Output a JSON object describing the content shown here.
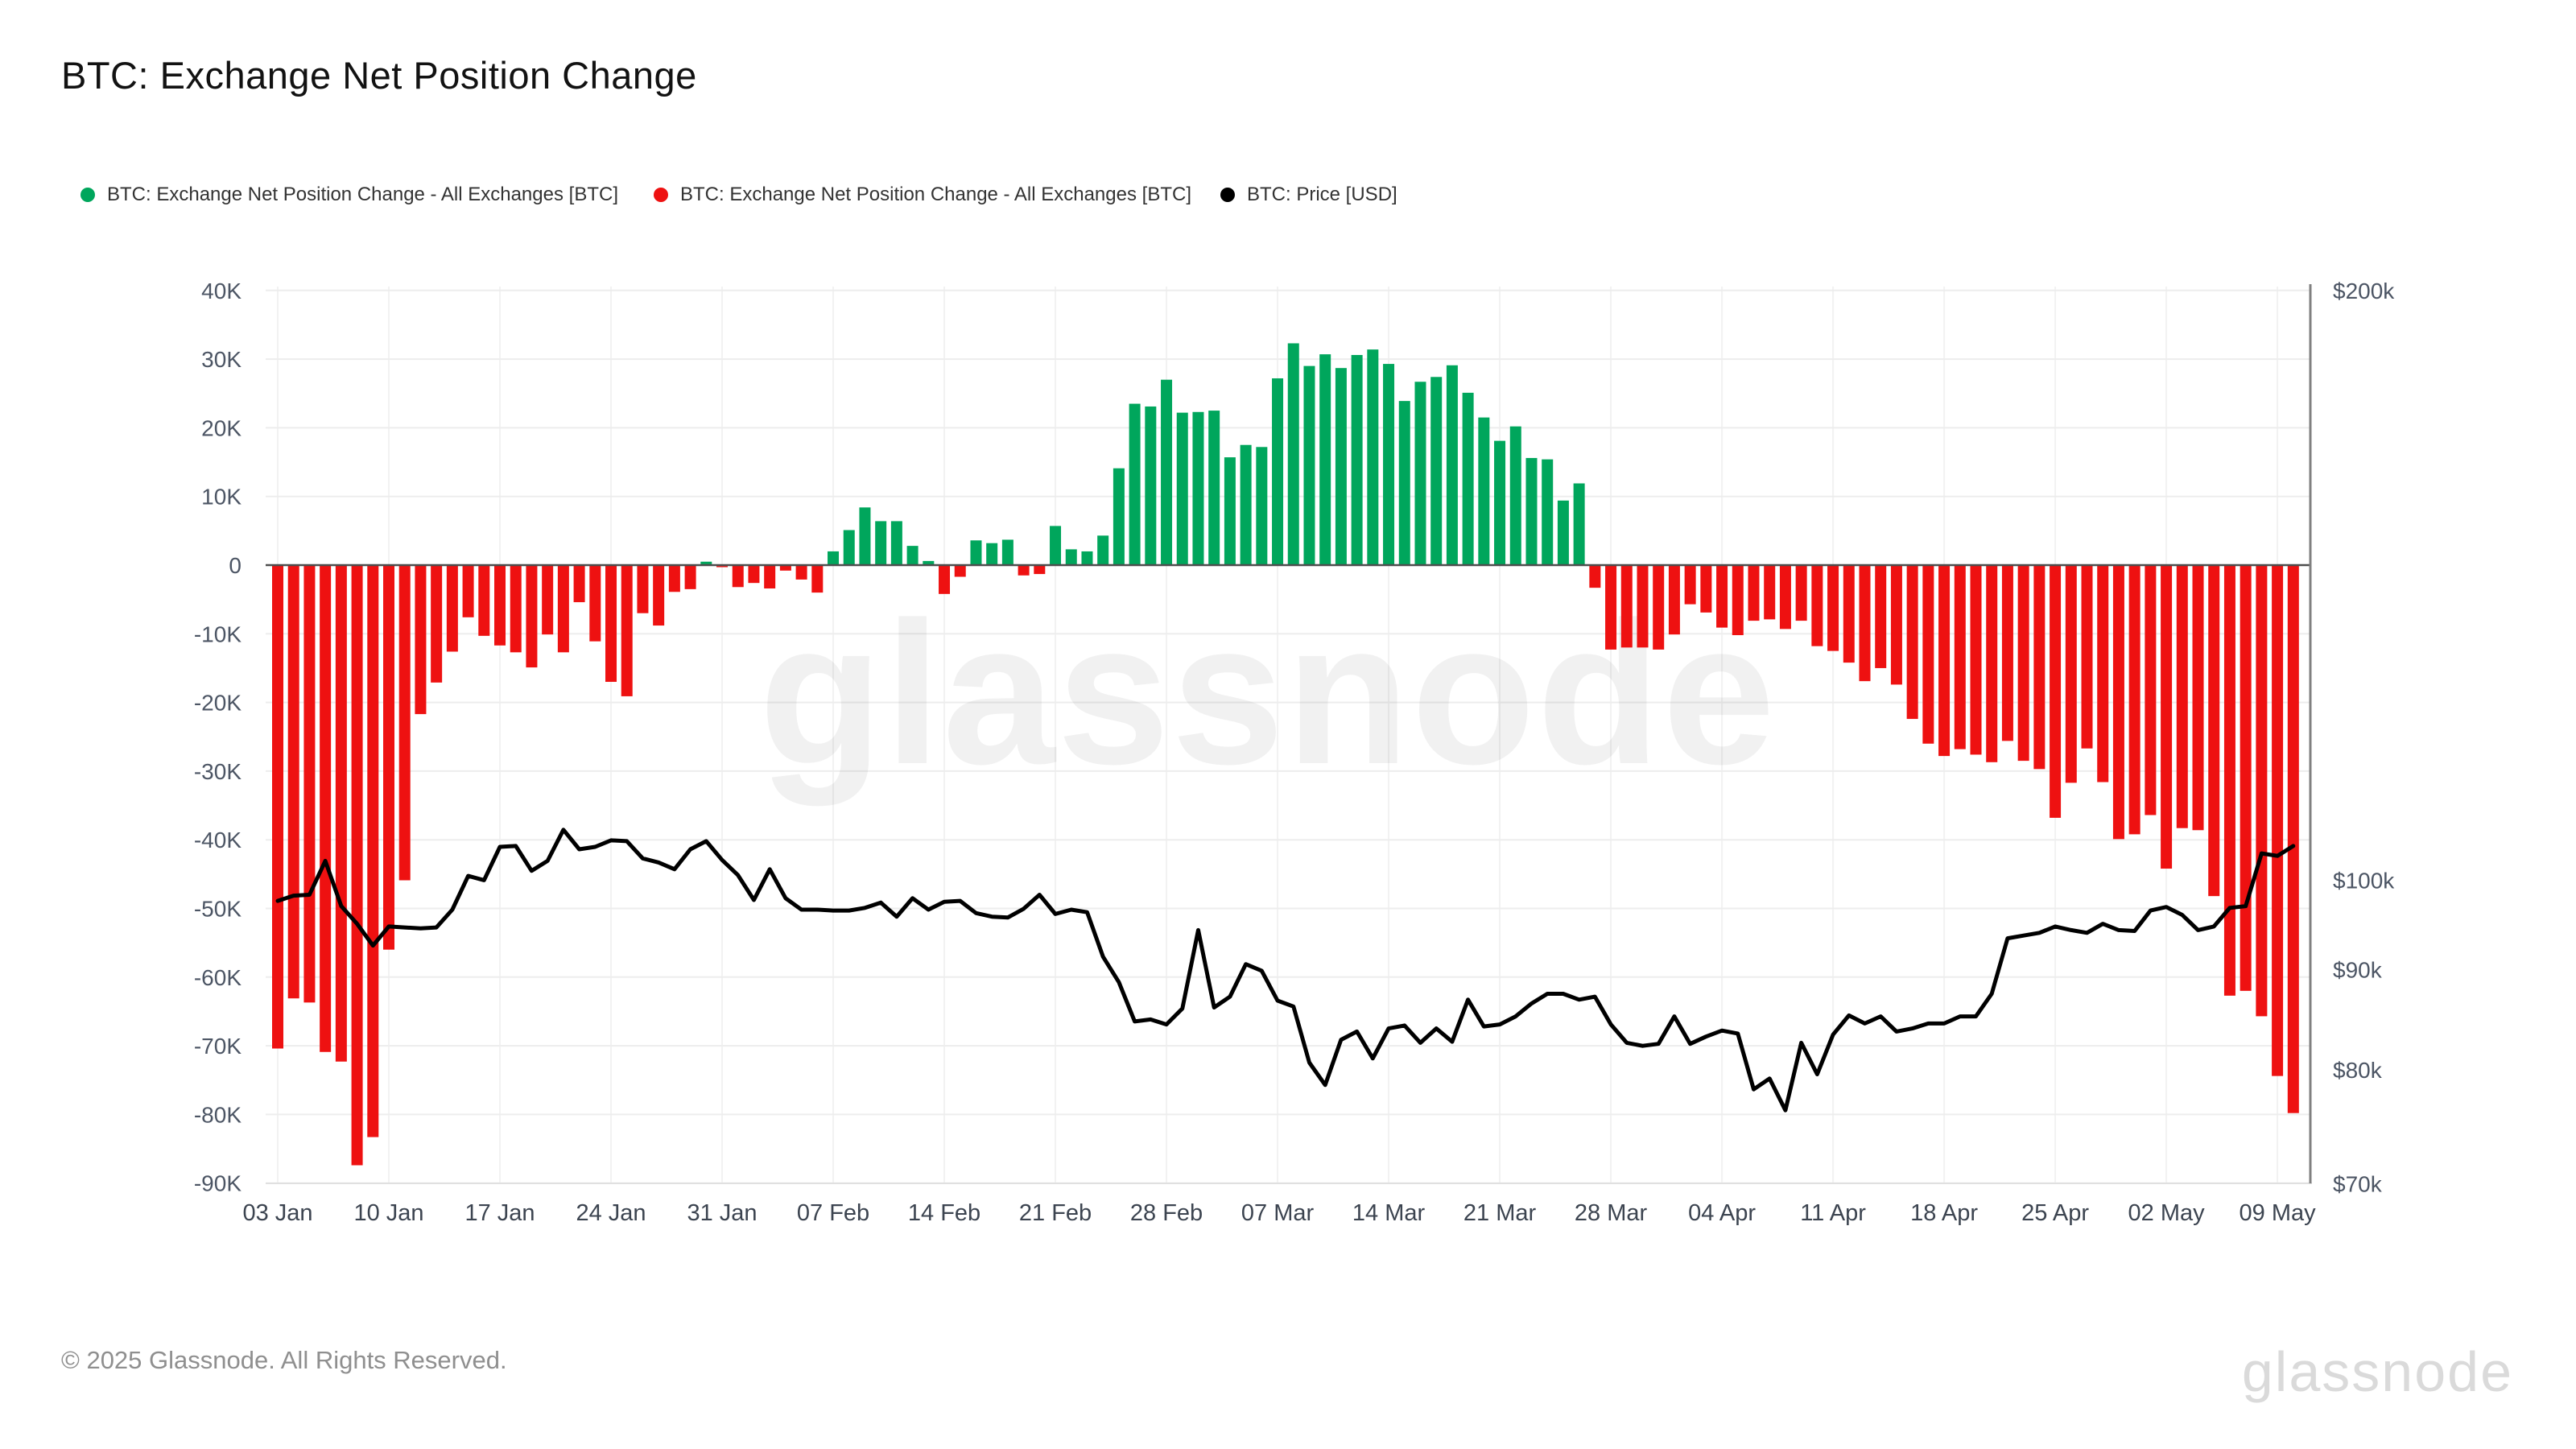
{
  "title": "BTC: Exchange Net Position Change",
  "watermark": "glassnode",
  "legend": {
    "items": [
      {
        "label": "BTC: Exchange Net Position Change - All Exchanges [BTC]",
        "color": "#00a65c"
      },
      {
        "label": "BTC: Exchange Net Position Change - All Exchanges [BTC]",
        "color": "#ee1111"
      },
      {
        "label": "BTC: Price [USD]",
        "color": "#000000"
      }
    ]
  },
  "footer": {
    "copyright": "© 2025 Glassnode. All Rights Reserved.",
    "brand": "glassnode"
  },
  "chart_data": {
    "type": "mixed",
    "title": "BTC: Exchange Net Position Change",
    "grid": true,
    "legend_position": "top-left",
    "left_axis": {
      "unit": "BTC",
      "scale": "linear",
      "range_k": [
        -90,
        40
      ],
      "ticks": [
        "40K",
        "30K",
        "20K",
        "10K",
        "0",
        "-10K",
        "-20K",
        "-30K",
        "-40K",
        "-50K",
        "-60K",
        "-70K",
        "-80K",
        "-90K"
      ],
      "tick_values_k": [
        40,
        30,
        20,
        10,
        0,
        -10,
        -20,
        -30,
        -40,
        -50,
        -60,
        -70,
        -80,
        -90
      ]
    },
    "right_axis": {
      "unit": "USD",
      "scale": "log",
      "range_usd": [
        70000,
        200000
      ],
      "ticks": [
        "$200k",
        "$100k",
        "$90k",
        "$80k",
        "$70k"
      ],
      "tick_values_k": [
        200,
        100,
        90,
        80,
        70
      ]
    },
    "x_tick_labels": [
      "03 Jan",
      "10 Jan",
      "17 Jan",
      "24 Jan",
      "31 Jan",
      "07 Feb",
      "14 Feb",
      "21 Feb",
      "28 Feb",
      "07 Mar",
      "14 Mar",
      "21 Mar",
      "28 Mar",
      "04 Apr",
      "11 Apr",
      "18 Apr",
      "25 Apr",
      "02 May",
      "09 May"
    ],
    "categories": [
      "03 Jan",
      "04 Jan",
      "05 Jan",
      "06 Jan",
      "07 Jan",
      "08 Jan",
      "09 Jan",
      "10 Jan",
      "11 Jan",
      "12 Jan",
      "13 Jan",
      "14 Jan",
      "15 Jan",
      "16 Jan",
      "17 Jan",
      "18 Jan",
      "19 Jan",
      "20 Jan",
      "21 Jan",
      "22 Jan",
      "23 Jan",
      "24 Jan",
      "25 Jan",
      "26 Jan",
      "27 Jan",
      "28 Jan",
      "29 Jan",
      "30 Jan",
      "31 Jan",
      "01 Feb",
      "02 Feb",
      "03 Feb",
      "04 Feb",
      "05 Feb",
      "06 Feb",
      "07 Feb",
      "08 Feb",
      "09 Feb",
      "10 Feb",
      "11 Feb",
      "12 Feb",
      "13 Feb",
      "14 Feb",
      "15 Feb",
      "16 Feb",
      "17 Feb",
      "18 Feb",
      "19 Feb",
      "20 Feb",
      "21 Feb",
      "22 Feb",
      "23 Feb",
      "24 Feb",
      "25 Feb",
      "26 Feb",
      "27 Feb",
      "28 Feb",
      "01 Mar",
      "02 Mar",
      "03 Mar",
      "04 Mar",
      "05 Mar",
      "06 Mar",
      "07 Mar",
      "08 Mar",
      "09 Mar",
      "10 Mar",
      "11 Mar",
      "12 Mar",
      "13 Mar",
      "14 Mar",
      "15 Mar",
      "16 Mar",
      "17 Mar",
      "18 Mar",
      "19 Mar",
      "20 Mar",
      "21 Mar",
      "22 Mar",
      "23 Mar",
      "24 Mar",
      "25 Mar",
      "26 Mar",
      "27 Mar",
      "28 Mar",
      "29 Mar",
      "30 Mar",
      "31 Mar",
      "01 Apr",
      "02 Apr",
      "03 Apr",
      "04 Apr",
      "05 Apr",
      "06 Apr",
      "07 Apr",
      "08 Apr",
      "09 Apr",
      "10 Apr",
      "11 Apr",
      "12 Apr",
      "13 Apr",
      "14 Apr",
      "15 Apr",
      "16 Apr",
      "17 Apr",
      "18 Apr",
      "19 Apr",
      "20 Apr",
      "21 Apr",
      "22 Apr",
      "23 Apr",
      "24 Apr",
      "25 Apr",
      "26 Apr",
      "27 Apr",
      "28 Apr",
      "29 Apr",
      "30 Apr",
      "01 May",
      "02 May",
      "03 May",
      "04 May",
      "05 May",
      "06 May",
      "07 May",
      "08 May",
      "09 May",
      "10 May"
    ],
    "series": [
      {
        "name": "BTC: Exchange Net Position Change - All Exchanges [BTC]",
        "type": "bar",
        "axis": "left",
        "unit_note": "thousands of BTC, read from left axis",
        "positive_color": "#00a65c",
        "negative_color": "#ee1111",
        "values_k": [
          -70.4,
          -63.1,
          -63.7,
          -70.9,
          -72.3,
          -87.4,
          -83.3,
          -56.0,
          -45.9,
          -21.7,
          -17.1,
          -12.6,
          -7.6,
          -10.3,
          -11.7,
          -12.7,
          -14.9,
          -10.1,
          -12.7,
          -5.4,
          -11.1,
          -17.0,
          -19.1,
          -7.0,
          -8.8,
          -3.9,
          -3.5,
          0.5,
          -0.3,
          -3.2,
          -2.6,
          -3.4,
          -0.8,
          -2.1,
          -4.0,
          2.0,
          5.1,
          8.4,
          6.4,
          6.4,
          2.8,
          0.6,
          -4.2,
          -1.7,
          3.6,
          3.2,
          3.7,
          -1.5,
          -1.3,
          5.7,
          2.3,
          2.0,
          4.3,
          14.1,
          23.5,
          23.1,
          27.0,
          22.2,
          22.3,
          22.5,
          15.7,
          17.5,
          17.2,
          27.2,
          32.3,
          29.0,
          30.7,
          28.7,
          30.6,
          31.4,
          29.3,
          23.9,
          26.7,
          27.4,
          29.1,
          25.1,
          21.5,
          18.1,
          20.2,
          15.6,
          15.4,
          9.4,
          11.9,
          -3.3,
          -12.3,
          -12.0,
          -12.0,
          -12.3,
          -10.1,
          -5.7,
          -6.9,
          -9.1,
          -10.2,
          -8.1,
          -7.9,
          -9.3,
          -8.1,
          -11.8,
          -12.5,
          -14.2,
          -16.9,
          -15.0,
          -17.4,
          -22.4,
          -26.0,
          -27.8,
          -26.8,
          -27.6,
          -28.7,
          -25.6,
          -28.5,
          -29.7,
          -36.8,
          -31.7,
          -26.7,
          -31.6,
          -39.9,
          -39.2,
          -36.4,
          -44.2,
          -38.3,
          -38.6,
          -48.2,
          -62.7,
          -62.0,
          -65.7,
          -74.4,
          -79.8
        ]
      },
      {
        "name": "BTC: Price [USD]",
        "type": "line",
        "axis": "right",
        "unit_note": "thousands of USD, read from right (log) axis",
        "color": "#000000",
        "values_k": [
          97.6,
          98.2,
          98.3,
          102.3,
          97.0,
          95.0,
          92.6,
          94.7,
          94.6,
          94.5,
          94.6,
          96.6,
          100.5,
          100.0,
          104.0,
          104.1,
          101.1,
          102.3,
          106.1,
          103.7,
          104.0,
          104.8,
          104.7,
          102.6,
          102.1,
          101.3,
          103.7,
          104.7,
          102.4,
          100.6,
          97.7,
          101.3,
          97.9,
          96.6,
          96.6,
          96.5,
          96.5,
          96.8,
          97.4,
          95.8,
          97.9,
          96.6,
          97.5,
          97.6,
          96.2,
          95.8,
          95.7,
          96.7,
          98.3,
          96.1,
          96.6,
          96.3,
          91.4,
          88.7,
          84.7,
          84.9,
          84.4,
          86.0,
          94.3,
          86.1,
          87.2,
          90.6,
          89.9,
          86.8,
          86.2,
          80.7,
          78.6,
          82.9,
          83.7,
          81.1,
          84.0,
          84.3,
          82.6,
          84.0,
          82.7,
          86.9,
          84.2,
          84.4,
          85.2,
          86.5,
          87.5,
          87.5,
          86.9,
          87.2,
          84.4,
          82.6,
          82.3,
          82.5,
          85.2,
          82.5,
          83.2,
          83.8,
          83.5,
          78.2,
          79.2,
          76.3,
          82.6,
          79.6,
          83.4,
          85.3,
          84.5,
          85.2,
          83.7,
          84.0,
          84.5,
          84.5,
          85.2,
          85.2,
          87.5,
          93.4,
          93.7,
          94.0,
          94.7,
          94.3,
          94.0,
          95.0,
          94.3,
          94.2,
          96.5,
          96.9,
          96.0,
          94.3,
          94.7,
          96.8,
          97.0,
          103.2,
          102.9,
          104.1
        ]
      }
    ]
  }
}
